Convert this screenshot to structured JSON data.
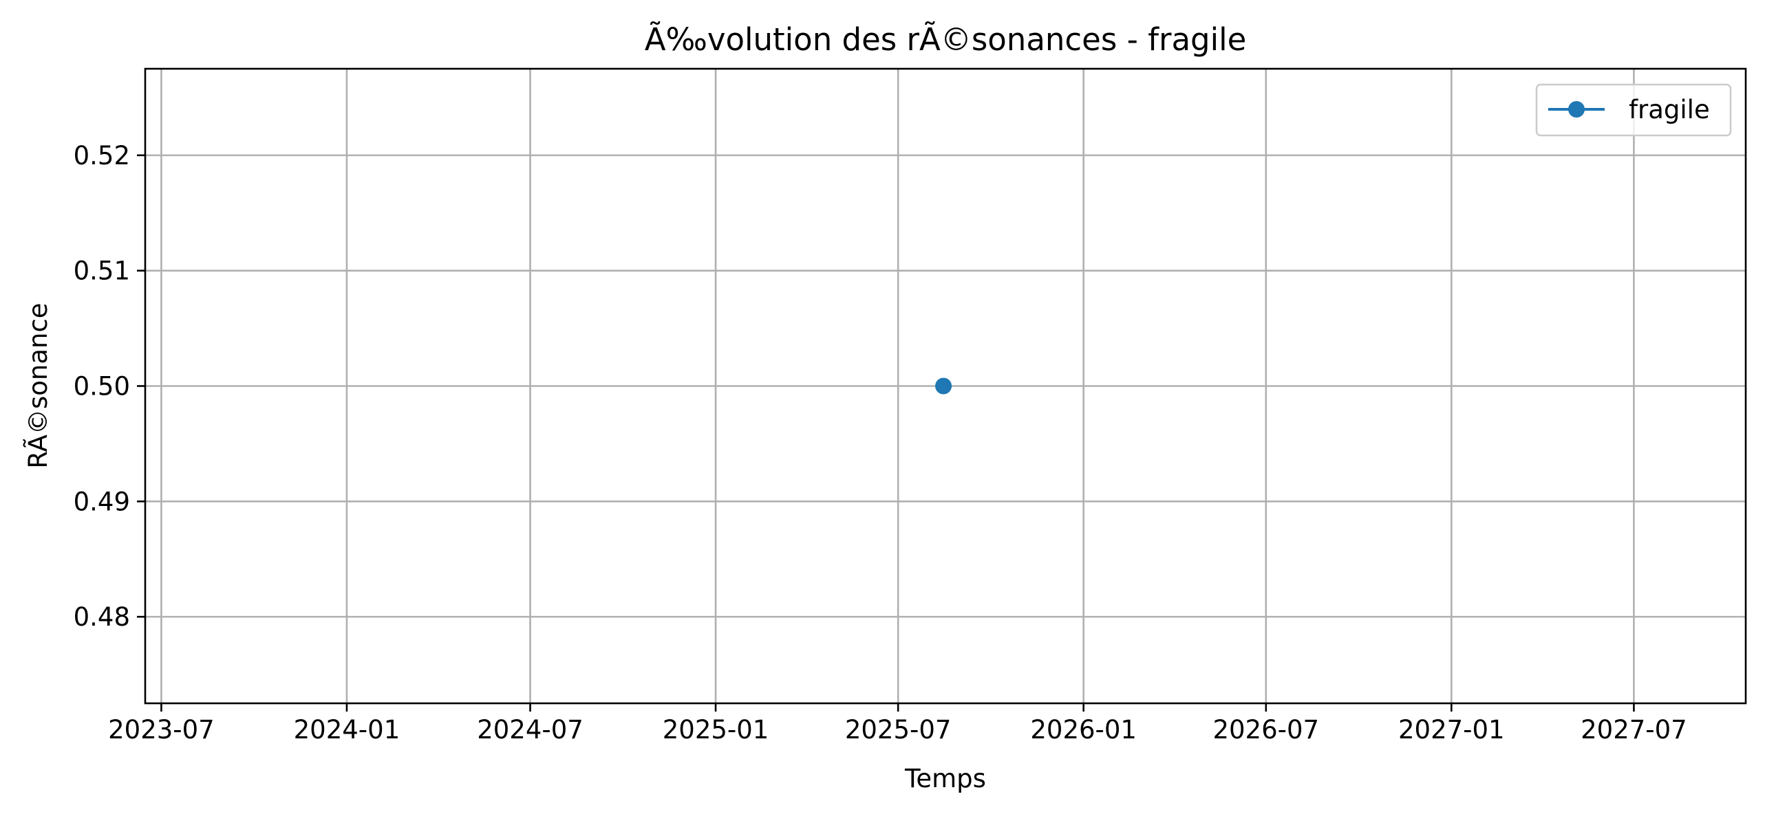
{
  "chart_data": {
    "type": "line",
    "title": "Ã‰volution des rÃ©sonances - fragile",
    "xlabel": "Temps",
    "ylabel": "RÃ©sonance",
    "x_ticks": [
      "2023-07",
      "2024-01",
      "2024-07",
      "2025-01",
      "2025-07",
      "2026-01",
      "2026-07",
      "2027-01",
      "2027-07"
    ],
    "y_ticks": [
      "0.48",
      "0.49",
      "0.50",
      "0.51",
      "0.52"
    ],
    "xlim": [
      "2023-06-15",
      "2027-10-20"
    ],
    "ylim": [
      0.4725,
      0.5275
    ],
    "grid": true,
    "legend_position": "top-right",
    "series": [
      {
        "name": "fragile",
        "color": "#1f77b4",
        "marker": "circle",
        "points": [
          {
            "x": "2025-08-15",
            "y": 0.5
          }
        ]
      }
    ]
  }
}
